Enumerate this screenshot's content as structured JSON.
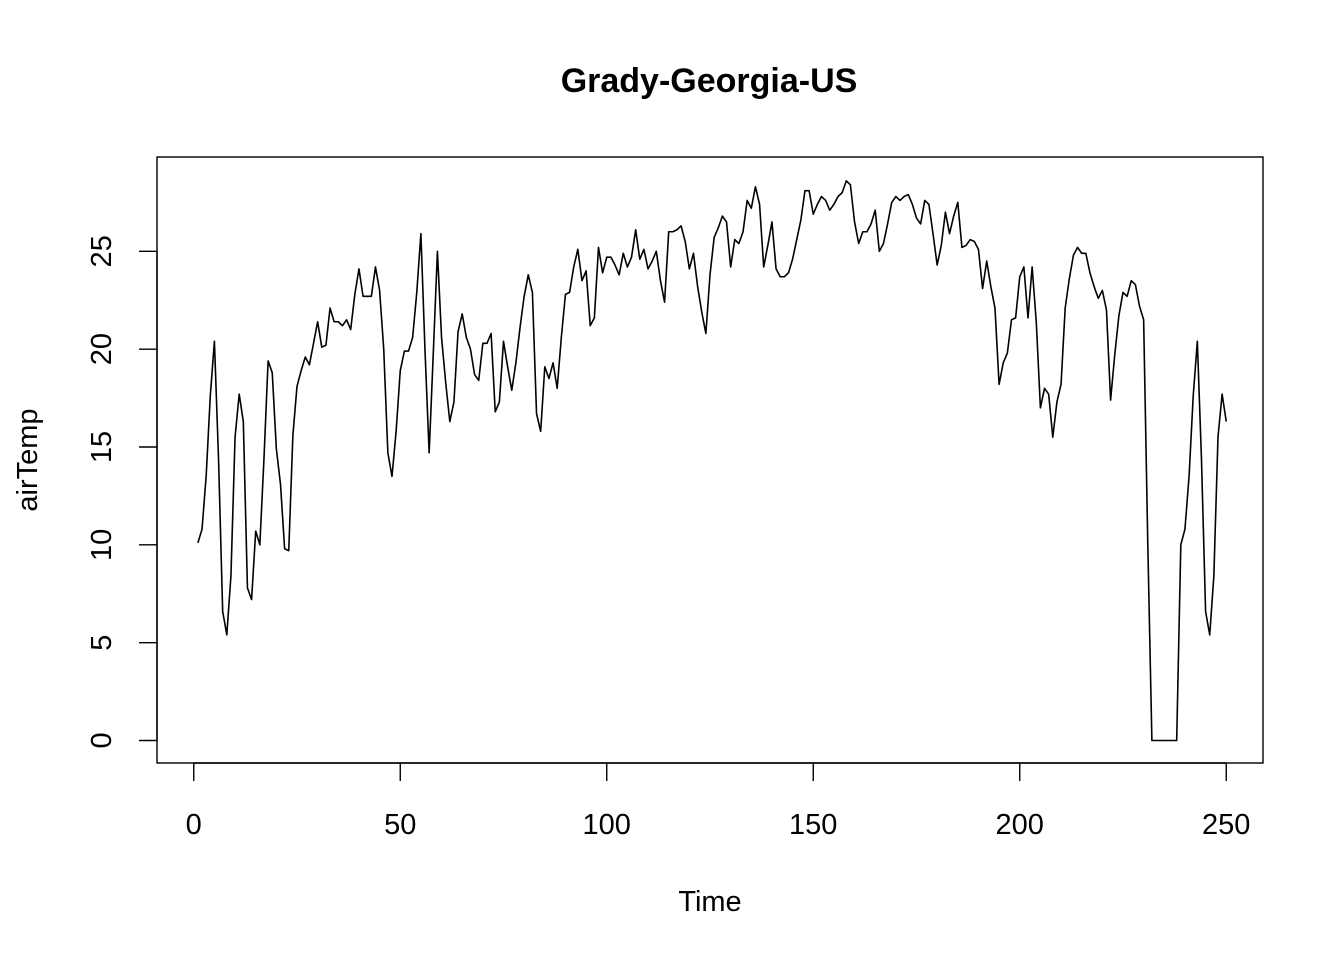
{
  "chart_data": {
    "type": "line",
    "title": "Grady-Georgia-US",
    "xlabel": "Time",
    "ylabel": "airTemp",
    "xlim": [
      -8.9,
      258.9
    ],
    "ylim": [
      -1.15,
      29.82
    ],
    "x_ticks": [
      0,
      50,
      100,
      150,
      200,
      250
    ],
    "y_ticks": [
      0,
      5,
      10,
      15,
      20,
      25
    ],
    "grid": false,
    "legend": "none",
    "line_color": "#000000",
    "series": [
      {
        "x_start": 1,
        "values": [
          10.1,
          10.8,
          13.5,
          17.6,
          20.4,
          14.4,
          6.6,
          5.4,
          8.4,
          15.5,
          17.7,
          16.3,
          7.8,
          7.2,
          10.7,
          10.0,
          14.4,
          19.4,
          18.8,
          14.9,
          13.1,
          9.8,
          9.7,
          15.6,
          18.1,
          18.9,
          19.6,
          19.2,
          20.3,
          21.4,
          20.1,
          20.2,
          22.1,
          21.4,
          21.4,
          21.2,
          21.5,
          21.0,
          22.8,
          24.1,
          22.7,
          22.7,
          22.7,
          24.2,
          23.0,
          20.0,
          14.7,
          13.5,
          15.8,
          18.9,
          19.9,
          19.9,
          20.6,
          22.9,
          25.9,
          19.9,
          14.7,
          19.8,
          25.0,
          20.6,
          18.3,
          16.3,
          17.3,
          20.9,
          21.8,
          20.6,
          20.0,
          18.7,
          18.4,
          20.3,
          20.3,
          20.8,
          16.8,
          17.3,
          20.4,
          19.1,
          17.9,
          19.3,
          21.1,
          22.7,
          23.8,
          22.9,
          16.7,
          15.8,
          19.1,
          18.5,
          19.3,
          18.0,
          20.6,
          22.8,
          22.9,
          24.2,
          25.1,
          23.5,
          24.0,
          21.2,
          21.6,
          25.2,
          23.9,
          24.7,
          24.7,
          24.3,
          23.8,
          24.9,
          24.2,
          24.7,
          26.1,
          24.6,
          25.1,
          24.1,
          24.5,
          25.0,
          23.5,
          22.4,
          26.0,
          26.0,
          26.1,
          26.3,
          25.5,
          24.1,
          24.9,
          23.2,
          21.9,
          20.8,
          23.8,
          25.7,
          26.2,
          26.8,
          26.5,
          24.2,
          25.6,
          25.4,
          26.0,
          27.6,
          27.2,
          28.3,
          27.4,
          24.2,
          25.3,
          26.5,
          24.1,
          23.7,
          23.7,
          23.9,
          24.6,
          25.6,
          26.6,
          28.1,
          28.1,
          26.9,
          27.4,
          27.8,
          27.6,
          27.1,
          27.4,
          27.8,
          28.0,
          28.6,
          28.4,
          26.5,
          25.4,
          26.0,
          26.0,
          26.4,
          27.1,
          25.0,
          25.4,
          26.4,
          27.5,
          27.8,
          27.6,
          27.8,
          27.9,
          27.4,
          26.7,
          26.4,
          27.6,
          27.4,
          25.9,
          24.3,
          25.3,
          27.0,
          25.9,
          26.8,
          27.5,
          25.2,
          25.3,
          25.6,
          25.5,
          25.1,
          23.1,
          24.5,
          23.2,
          22.1,
          18.2,
          19.3,
          19.8,
          21.5,
          21.6,
          23.7,
          24.2,
          21.6,
          24.2,
          21.4,
          17.0,
          18.0,
          17.7,
          15.5,
          17.3,
          18.2,
          22.1,
          23.6,
          24.8,
          25.2,
          24.9,
          24.9,
          23.9,
          23.2,
          22.6,
          23.0,
          22.0,
          17.4,
          19.7,
          21.7,
          22.9,
          22.7,
          23.5,
          23.3,
          22.2,
          21.5,
          10.1,
          0,
          0,
          0,
          0,
          0,
          0,
          0,
          10.0,
          10.8,
          13.5,
          17.6,
          20.4,
          14.4,
          6.6,
          5.4,
          8.4,
          15.5,
          17.7,
          16.3
        ]
      }
    ]
  }
}
